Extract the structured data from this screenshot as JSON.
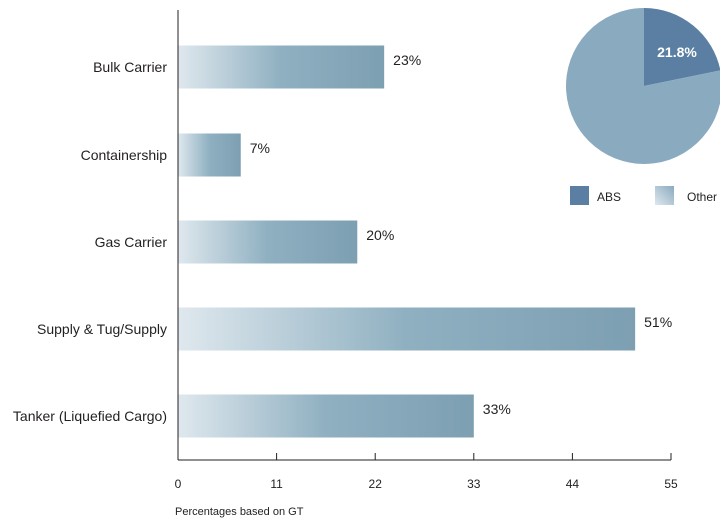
{
  "chart_data": [
    {
      "type": "bar",
      "orientation": "horizontal",
      "categories": [
        "Bulk Carrier",
        "Containership",
        "Gas Carrier",
        "Supply & Tug/Supply",
        "Tanker (Liquefied Cargo)"
      ],
      "values": [
        23,
        7,
        20,
        51,
        33
      ],
      "value_labels": [
        "23%",
        "7%",
        "20%",
        "51%",
        "33%"
      ],
      "xlim": [
        0,
        55
      ],
      "xticks": [
        0,
        11,
        22,
        33,
        44,
        55
      ],
      "xlabel": "Percentages based on GT",
      "grid": false
    },
    {
      "type": "pie",
      "slices": [
        {
          "name": "ABS",
          "value": 21.8,
          "label": "21.8%"
        },
        {
          "name": "Other",
          "value": 78.2
        }
      ],
      "legend": {
        "placement": "bottom",
        "entries": [
          "ABS",
          "Other"
        ]
      }
    }
  ],
  "colors": {
    "abs": "#5b7fa3",
    "other": "#8aaac0",
    "bar_start": "#dfe8ee",
    "bar_end": "#7d9fb2",
    "axis": "#231f20"
  }
}
